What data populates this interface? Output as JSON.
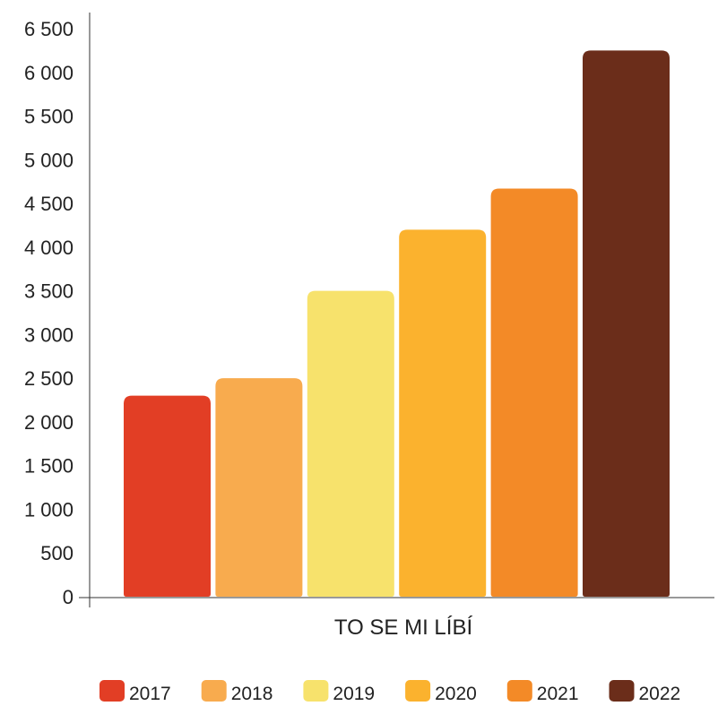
{
  "chart_data": {
    "type": "bar",
    "title": "",
    "xlabel": "TO SE MI LÍBÍ",
    "ylabel": "",
    "ylim": [
      0,
      6500
    ],
    "yticks": [
      0,
      500,
      1000,
      1500,
      2000,
      2500,
      3000,
      3500,
      4000,
      4500,
      5000,
      5500,
      6000,
      6500
    ],
    "ytick_labels": [
      "0",
      "500",
      "1 000",
      "1 500",
      "2 000",
      "2 500",
      "3 000",
      "3 500",
      "4 000",
      "4 500",
      "5 000",
      "5 500",
      "6 000",
      "6 500"
    ],
    "grid": false,
    "legend_position": "bottom",
    "series": [
      {
        "name": "2017",
        "value": 2300,
        "color": "#e23e25"
      },
      {
        "name": "2018",
        "value": 2500,
        "color": "#f8ab4e"
      },
      {
        "name": "2019",
        "value": 3500,
        "color": "#f7e26c"
      },
      {
        "name": "2020",
        "value": 4200,
        "color": "#fbb22e"
      },
      {
        "name": "2021",
        "value": 4670,
        "color": "#f38a27"
      },
      {
        "name": "2022",
        "value": 6250,
        "color": "#6b2d1a"
      }
    ]
  }
}
